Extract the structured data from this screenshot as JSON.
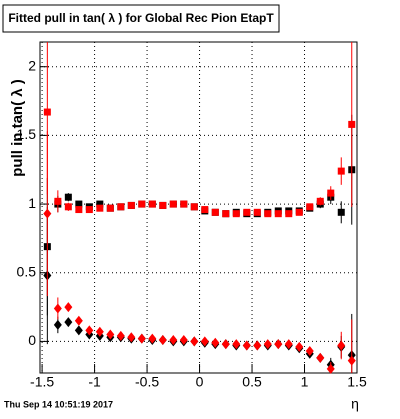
{
  "chart_data": {
    "type": "scatter",
    "title": "Fitted pull in tan( λ ) for Global Rec Pion EtapT",
    "ylabel": "pull in tan( λ )",
    "xlabel": "η",
    "x": [
      -1.45,
      -1.35,
      -1.25,
      -1.15,
      -1.05,
      -0.95,
      -0.85,
      -0.75,
      -0.65,
      -0.55,
      -0.45,
      -0.35,
      -0.25,
      -0.15,
      -0.05,
      0.05,
      0.15,
      0.25,
      0.35,
      0.45,
      0.55,
      0.65,
      0.75,
      0.85,
      0.95,
      1.05,
      1.15,
      1.25,
      1.35,
      1.45
    ],
    "series": [
      {
        "color": "#000000",
        "marker": "square",
        "values": [
          0.69,
          1.0,
          1.05,
          1.0,
          0.98,
          1.0,
          0.97,
          0.98,
          0.99,
          1.0,
          1.0,
          0.99,
          1.0,
          1.0,
          0.98,
          0.95,
          0.94,
          0.93,
          0.94,
          0.93,
          0.93,
          0.94,
          0.95,
          0.95,
          0.95,
          0.97,
          1.0,
          1.05,
          0.94,
          1.25
        ],
        "errors": [
          0.5,
          0.06,
          0.03,
          0.02,
          0.01,
          0.01,
          0.01,
          0.01,
          0.01,
          0.01,
          0.01,
          0.01,
          0.01,
          0.01,
          0.01,
          0.01,
          0.01,
          0.01,
          0.01,
          0.01,
          0.01,
          0.01,
          0.01,
          0.01,
          0.01,
          0.02,
          0.03,
          0.05,
          0.08,
          0.4
        ]
      },
      {
        "color": "#ff0000",
        "marker": "square",
        "values": [
          1.67,
          1.02,
          0.98,
          0.96,
          0.96,
          0.97,
          0.97,
          0.98,
          0.99,
          1.0,
          1.0,
          0.99,
          1.0,
          1.0,
          0.98,
          0.96,
          0.94,
          0.93,
          0.93,
          0.94,
          0.94,
          0.93,
          0.93,
          0.93,
          0.94,
          0.98,
          1.02,
          1.08,
          1.24,
          1.58
        ],
        "errors": [
          0.6,
          0.08,
          0.03,
          0.02,
          0.01,
          0.01,
          0.01,
          0.01,
          0.01,
          0.01,
          0.01,
          0.01,
          0.01,
          0.01,
          0.01,
          0.01,
          0.01,
          0.01,
          0.01,
          0.01,
          0.01,
          0.01,
          0.01,
          0.01,
          0.01,
          0.02,
          0.03,
          0.05,
          0.1,
          0.6
        ]
      },
      {
        "color": "#000000",
        "marker": "diamond",
        "values": [
          0.48,
          0.12,
          0.14,
          0.08,
          0.05,
          0.04,
          0.03,
          0.03,
          0.02,
          0.02,
          0.01,
          0.01,
          0.0,
          0.0,
          0.0,
          -0.01,
          -0.02,
          -0.02,
          -0.03,
          -0.03,
          -0.03,
          -0.03,
          -0.02,
          -0.03,
          -0.05,
          -0.09,
          -0.12,
          -0.17,
          -0.04,
          -0.1
        ],
        "errors": [
          0.5,
          0.06,
          0.03,
          0.02,
          0.01,
          0.01,
          0.01,
          0.01,
          0.01,
          0.01,
          0.01,
          0.01,
          0.01,
          0.01,
          0.01,
          0.01,
          0.01,
          0.01,
          0.01,
          0.01,
          0.01,
          0.01,
          0.01,
          0.01,
          0.01,
          0.02,
          0.03,
          0.05,
          0.08,
          0.3
        ]
      },
      {
        "color": "#ff0000",
        "marker": "diamond",
        "values": [
          0.93,
          0.24,
          0.25,
          0.15,
          0.08,
          0.07,
          0.05,
          0.04,
          0.03,
          0.02,
          0.02,
          0.01,
          0.01,
          0.01,
          0.0,
          0.0,
          -0.01,
          -0.02,
          -0.02,
          -0.03,
          -0.03,
          -0.02,
          -0.02,
          -0.02,
          -0.04,
          -0.07,
          -0.12,
          -0.2,
          -0.03,
          -0.14
        ],
        "errors": [
          0.6,
          0.08,
          0.03,
          0.02,
          0.01,
          0.01,
          0.01,
          0.01,
          0.01,
          0.01,
          0.01,
          0.01,
          0.01,
          0.01,
          0.01,
          0.01,
          0.01,
          0.01,
          0.01,
          0.01,
          0.01,
          0.01,
          0.01,
          0.01,
          0.01,
          0.02,
          0.03,
          0.05,
          0.1,
          0.3
        ]
      }
    ],
    "xlim": [
      -1.52,
      1.5
    ],
    "ylim": [
      -0.23,
      2.18
    ],
    "xticks": [
      -1.5,
      -1,
      -0.5,
      0,
      0.5,
      1,
      1.5
    ],
    "yticks": [
      0,
      0.5,
      1,
      1.5,
      2
    ],
    "grid": true
  },
  "footer": "Thu Sep 14 10:51:19 2017"
}
